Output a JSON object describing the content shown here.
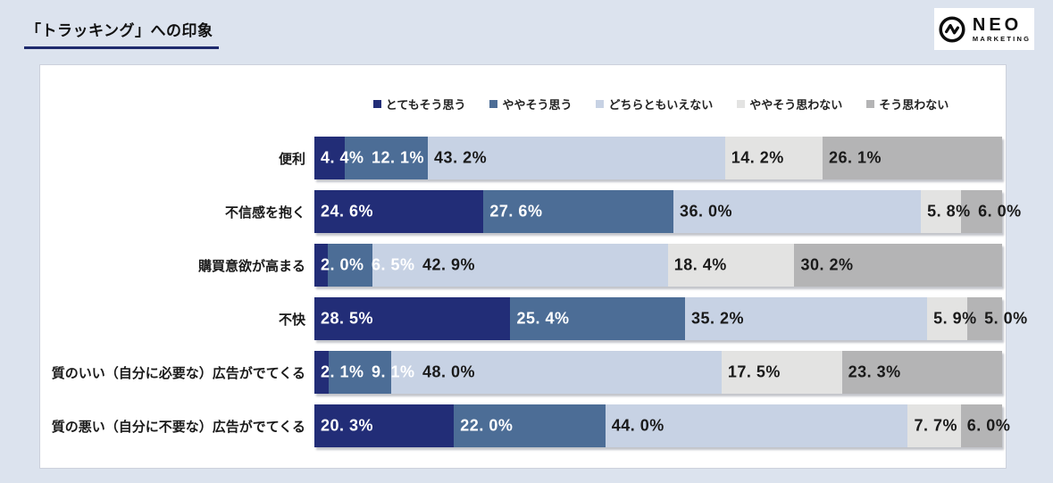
{
  "page": {
    "title": "「トラッキング」への印象"
  },
  "logo": {
    "name": "NEO",
    "sub": "MARKETING"
  },
  "colors": {
    "background": "#dce3ee",
    "card": "#ffffff",
    "card_border": "#ccd1dc",
    "title_underline": "#1e2a6d"
  },
  "chart_data": {
    "type": "bar",
    "stacked": true,
    "orientation": "horizontal",
    "title": "「トラッキング」への印象",
    "xlabel": "",
    "ylabel": "",
    "xlim": [
      0,
      100
    ],
    "unit": "%",
    "grid": false,
    "legend_position": "top",
    "categories": [
      "便利",
      "不信感を抱く",
      "購買意欲が高まる",
      "不快",
      "質のいい（自分に必要な）広告がでてくる",
      "質の悪い（自分に不要な）広告がでてくる"
    ],
    "series": [
      {
        "name": "とてもそう思う",
        "color": "#222d77",
        "value_text_color": "#ffffff",
        "values": [
          4.4,
          24.6,
          2.0,
          28.5,
          2.1,
          20.3
        ]
      },
      {
        "name": "ややそう思う",
        "color": "#4c6d96",
        "value_text_color": "#ffffff",
        "values": [
          12.1,
          27.6,
          6.5,
          25.4,
          9.1,
          22.0
        ]
      },
      {
        "name": "どちらともいえない",
        "color": "#c7d2e4",
        "value_text_color": "#1a1a1a",
        "values": [
          43.2,
          36.0,
          42.9,
          35.2,
          48.0,
          44.0
        ]
      },
      {
        "name": "ややそう思わない",
        "color": "#e3e3e2",
        "value_text_color": "#1a1a1a",
        "values": [
          14.2,
          5.8,
          18.4,
          5.9,
          17.5,
          7.7
        ]
      },
      {
        "name": "そう思わない",
        "color": "#b4b4b5",
        "value_text_color": "#1a1a1a",
        "values": [
          26.1,
          6.0,
          30.2,
          5.0,
          23.3,
          6.0
        ]
      }
    ],
    "value_labels": [
      [
        "4. 4%",
        "12. 1%",
        "43. 2%",
        "14. 2%",
        "26. 1%"
      ],
      [
        "24. 6%",
        "27. 6%",
        "36. 0%",
        "5. 8%",
        "6. 0%"
      ],
      [
        "2. 0%",
        "6. 5%",
        "42. 9%",
        "18. 4%",
        "30. 2%"
      ],
      [
        "28. 5%",
        "25. 4%",
        "35. 2%",
        "5. 9%",
        "5. 0%"
      ],
      [
        "2. 1%",
        "9. 1%",
        "48. 0%",
        "17. 5%",
        "23. 3%"
      ],
      [
        "20. 3%",
        "22. 0%",
        "44. 0%",
        "7. 7%",
        "6. 0%"
      ]
    ]
  }
}
